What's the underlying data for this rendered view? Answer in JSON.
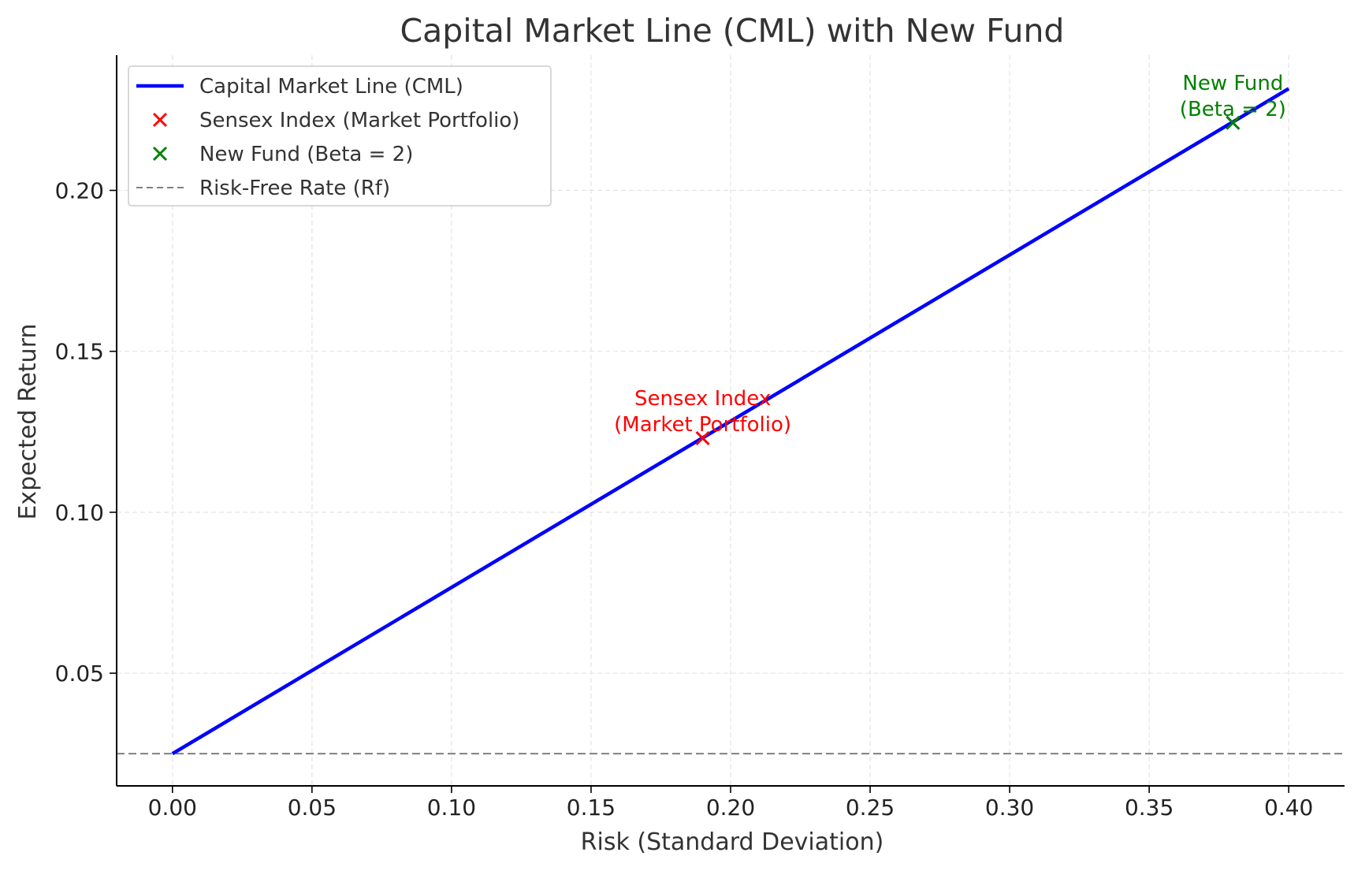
{
  "chart_data": {
    "type": "line",
    "title": "Capital Market Line (CML) with New Fund",
    "xlabel": "Risk (Standard Deviation)",
    "ylabel": "Expected Return",
    "xlim": [
      -0.02,
      0.42
    ],
    "ylim": [
      0.015,
      0.242
    ],
    "xticks": [
      0.0,
      0.05,
      0.1,
      0.15,
      0.2,
      0.25,
      0.3,
      0.35,
      0.4
    ],
    "xtick_labels": [
      "0.00",
      "0.05",
      "0.10",
      "0.15",
      "0.20",
      "0.25",
      "0.30",
      "0.35",
      "0.40"
    ],
    "yticks": [
      0.05,
      0.1,
      0.15,
      0.2
    ],
    "ytick_labels": [
      "0.05",
      "0.10",
      "0.15",
      "0.20"
    ],
    "grid": true,
    "legend_position": "upper-left",
    "series": [
      {
        "name": "Capital Market Line (CML)",
        "kind": "line",
        "color": "#0000ff",
        "x": [
          0.0,
          0.4
        ],
        "y": [
          0.025,
          0.2316
        ]
      },
      {
        "name": "Sensex Index (Market Portfolio)",
        "kind": "scatter",
        "marker": "x",
        "color": "#ff0000",
        "x": [
          0.19
        ],
        "y": [
          0.123
        ],
        "annotation": [
          "Sensex Index",
          "(Market Portfolio)"
        ]
      },
      {
        "name": "New Fund (Beta = 2)",
        "kind": "scatter",
        "marker": "x",
        "color": "#008000",
        "x": [
          0.38
        ],
        "y": [
          0.221
        ],
        "annotation": [
          "New Fund",
          "(Beta = 2)"
        ]
      },
      {
        "name": "Risk-Free Rate (Rf)",
        "kind": "hline",
        "color": "#808080",
        "linestyle": "dashed",
        "y": 0.025
      }
    ]
  }
}
